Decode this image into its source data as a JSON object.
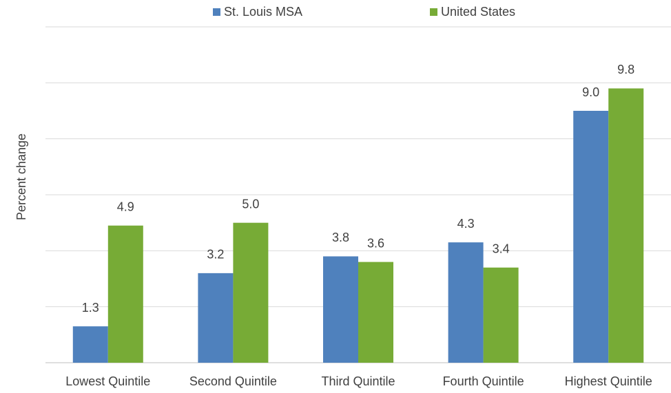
{
  "chart_data": {
    "type": "bar",
    "y_label": "Percent change",
    "categories": [
      "Lowest Quintile",
      "Second Quintile",
      "Third Quintile",
      "Fourth Quintile",
      "Highest Quintile"
    ],
    "series": [
      {
        "name": "St. Louis MSA",
        "color": "#4f81bd",
        "values": [
          1.3,
          3.2,
          3.8,
          4.3,
          9.0
        ],
        "value_labels": [
          "1.3",
          "3.2",
          "3.8",
          "4.3",
          "9.0"
        ]
      },
      {
        "name": "United States",
        "color": "#77ab36",
        "values": [
          4.9,
          5.0,
          3.6,
          3.4,
          9.8
        ],
        "value_labels": [
          "4.9",
          "5.0",
          "3.6",
          "3.4",
          "9.8"
        ]
      }
    ],
    "ylim": [
      0,
      12
    ],
    "yticks": [
      0,
      2,
      4,
      6,
      8,
      10,
      12
    ],
    "grid": true,
    "legend": "top"
  }
}
